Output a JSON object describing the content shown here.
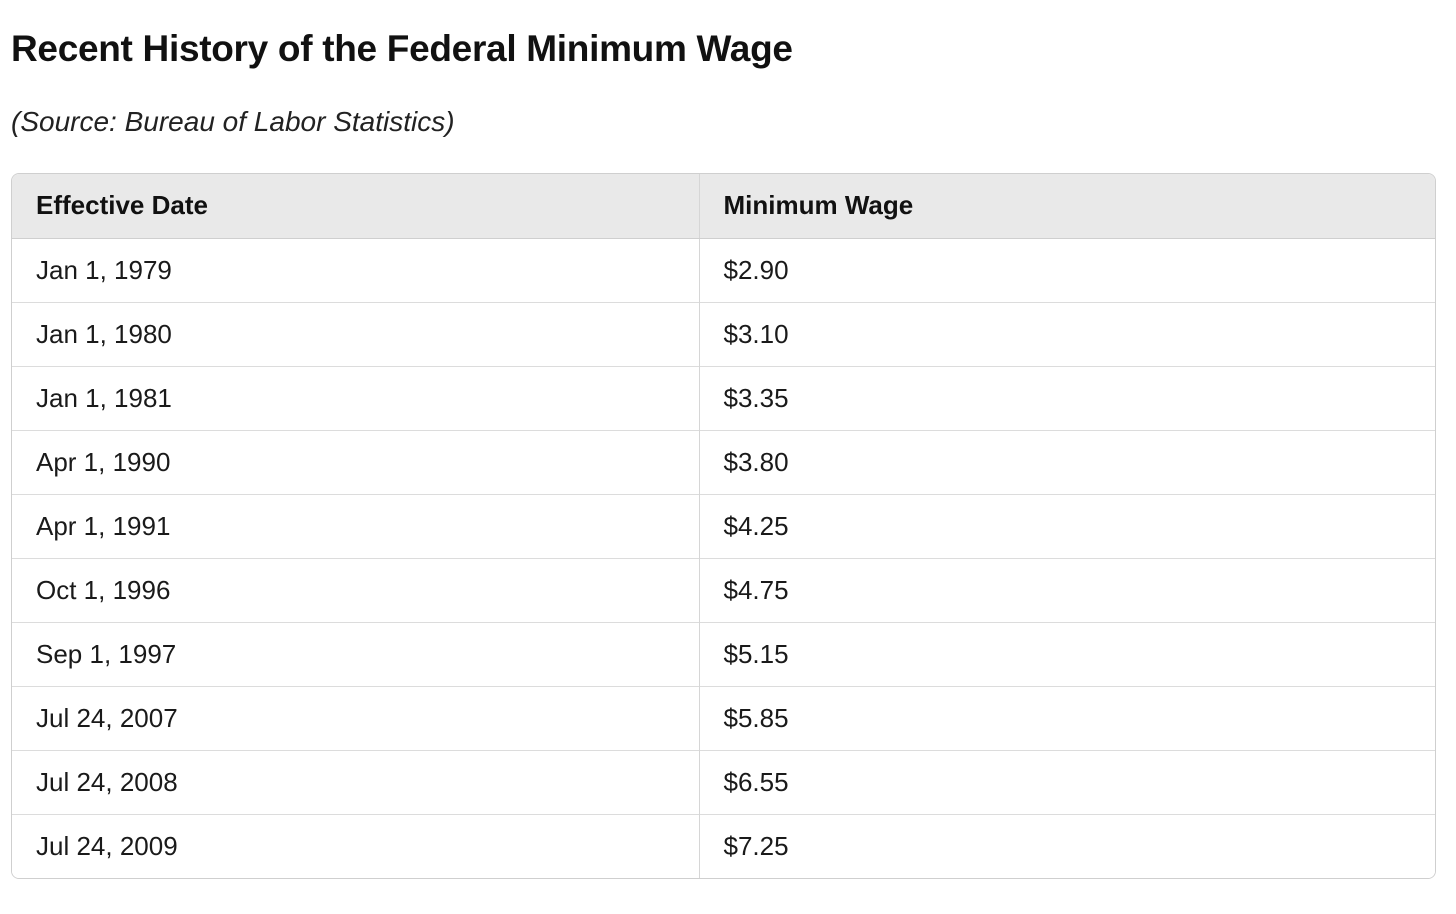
{
  "title": "Recent History of the Federal Minimum Wage",
  "source": "(Source: Bureau of Labor Statistics)",
  "table": {
    "headers": [
      "Effective Date",
      "Minimum Wage"
    ],
    "rows": [
      [
        "Jan 1, 1979",
        "$2.90"
      ],
      [
        "Jan 1, 1980",
        "$3.10"
      ],
      [
        "Jan 1, 1981",
        "$3.35"
      ],
      [
        "Apr 1, 1990",
        "$3.80"
      ],
      [
        "Apr 1, 1991",
        "$4.25"
      ],
      [
        "Oct 1, 1996",
        "$4.75"
      ],
      [
        "Sep 1, 1997",
        "$5.15"
      ],
      [
        "Jul 24, 2007",
        "$5.85"
      ],
      [
        "Jul 24, 2008",
        "$6.55"
      ],
      [
        "Jul 24, 2009",
        "$7.25"
      ]
    ]
  }
}
